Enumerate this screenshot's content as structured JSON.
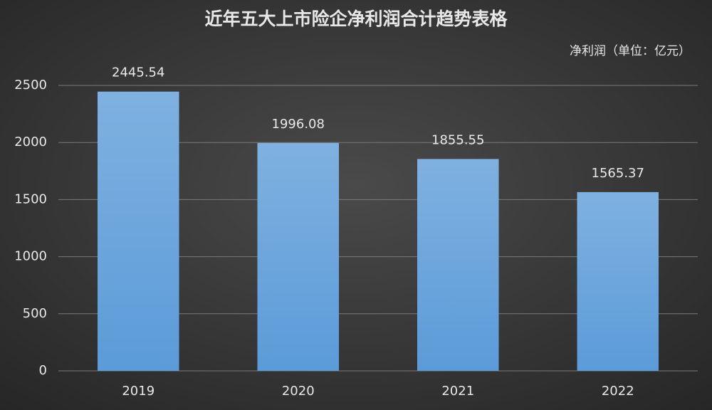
{
  "chart_data": {
    "type": "bar",
    "title": "近年五大上市险企净利润合计趋势表格",
    "subtitle": "净利润（单位：亿元）",
    "categories": [
      "2019",
      "2020",
      "2021",
      "2022"
    ],
    "values": [
      2445.54,
      1996.08,
      1855.55,
      1565.37
    ],
    "color": "#5b9bd8",
    "ylim": [
      0,
      2500
    ],
    "yticks": [
      0,
      500,
      1000,
      1500,
      2000,
      2500
    ],
    "grid": true
  }
}
